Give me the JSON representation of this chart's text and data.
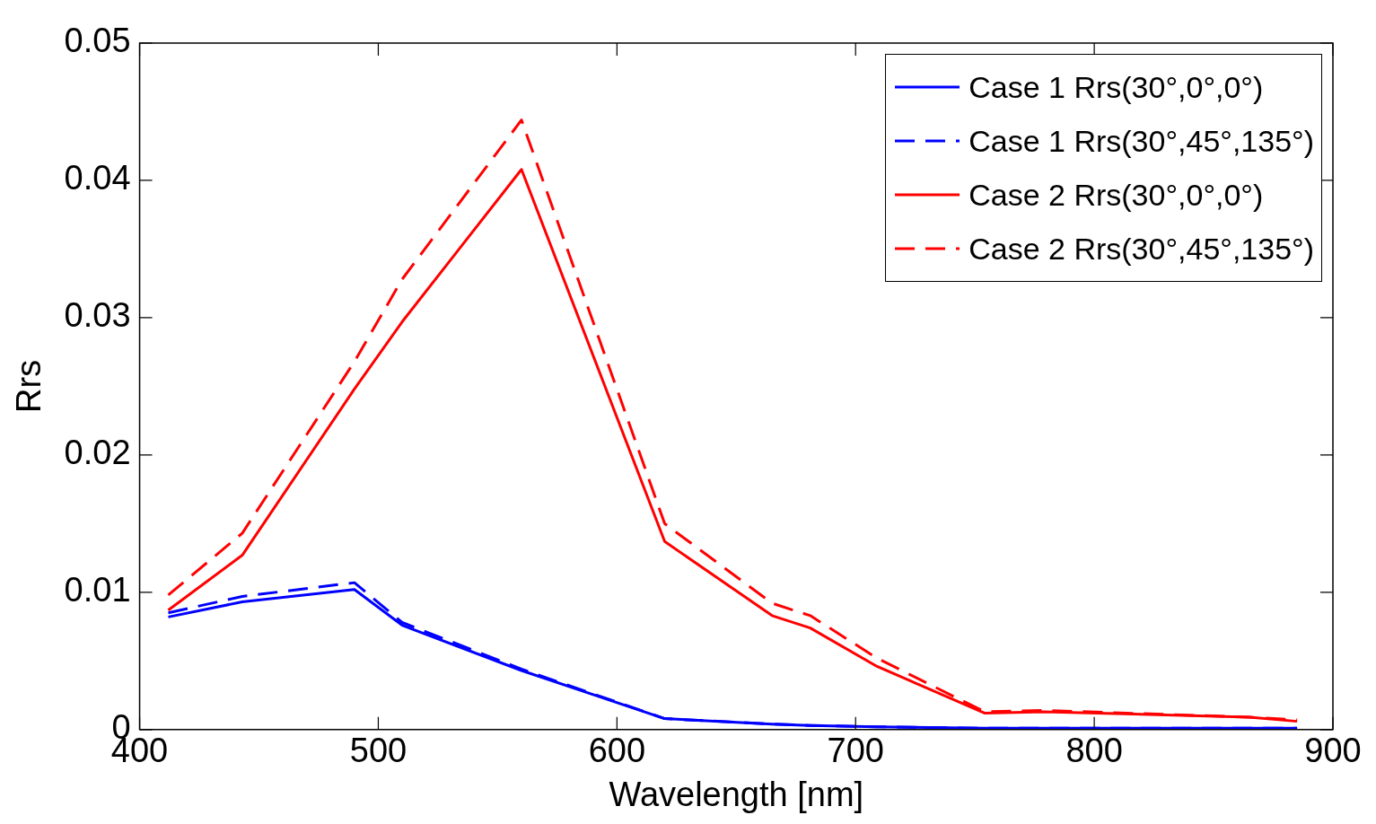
{
  "chart_data": {
    "type": "line",
    "xlabel": "Wavelength [nm]",
    "ylabel": "Rrs",
    "x": [
      412,
      443,
      490,
      510,
      560,
      620,
      665,
      681,
      709,
      754,
      779,
      865,
      885
    ],
    "xlim": [
      400,
      900
    ],
    "xticks": [
      400,
      500,
      600,
      700,
      800,
      900
    ],
    "ylim": [
      0,
      0.05
    ],
    "yticks": [
      0,
      0.01,
      0.02,
      0.03,
      0.04,
      0.05
    ],
    "grid": false,
    "legend": "top right",
    "marker": "none",
    "series": [
      {
        "name": "Case 1 Rrs(30°,0°,0°)",
        "color": "#0000ff",
        "line_style": "solid",
        "values": [
          0.0082,
          0.0093,
          0.0102,
          0.0076,
          0.0043,
          0.0008,
          0.0004,
          0.0003,
          0.0002,
          0.0001,
          0.0001,
          0.0001,
          0.0001
        ]
      },
      {
        "name": "Case 1 Rrs(30°,45°,135°)",
        "color": "#0000ff",
        "line_style": "dashed",
        "values": [
          0.0085,
          0.0097,
          0.0107,
          0.0078,
          0.0044,
          0.0008,
          0.0004,
          0.0003,
          0.0002,
          0.0001,
          0.0001,
          0.0001,
          0.0001
        ]
      },
      {
        "name": "Case 2 Rrs(30°,0°,0°)",
        "color": "#ff0000",
        "line_style": "solid",
        "values": [
          0.0087,
          0.0127,
          0.0248,
          0.0297,
          0.0408,
          0.0137,
          0.0083,
          0.0074,
          0.0046,
          0.0012,
          0.0013,
          0.0009,
          0.0006
        ]
      },
      {
        "name": "Case 2 Rrs(30°,45°,135°)",
        "color": "#ff0000",
        "line_style": "dashed",
        "values": [
          0.0098,
          0.0143,
          0.0268,
          0.0328,
          0.0444,
          0.015,
          0.0092,
          0.0083,
          0.0052,
          0.0013,
          0.0014,
          0.0009,
          0.0007
        ]
      }
    ]
  }
}
